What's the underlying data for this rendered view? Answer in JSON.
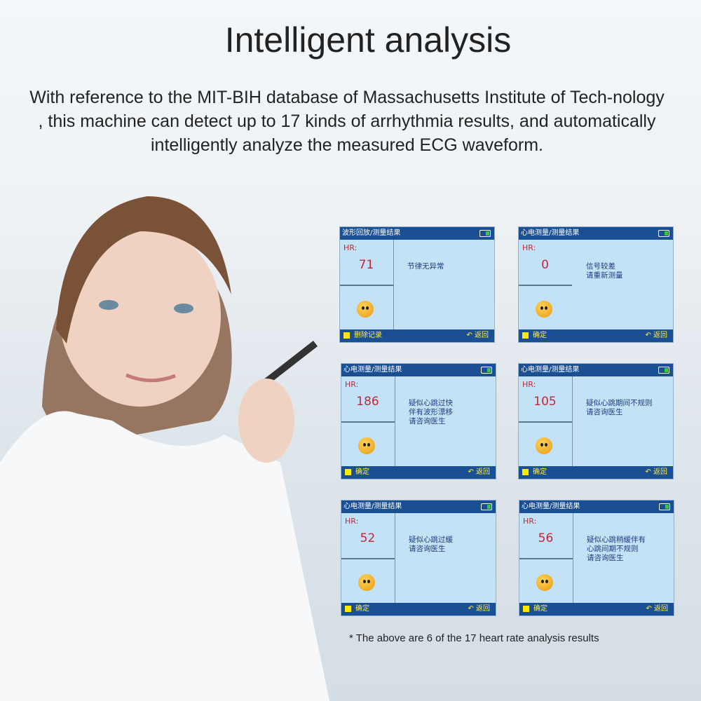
{
  "title": "Intelligent analysis",
  "description": "With reference to the MIT-BIH database of Massachusetts Institute of Tech-nology , this machine can detect up to 17 kinds of arrhythmia results, and automatically intelligently analyze the measured ECG waveform.",
  "hr_label": "HR:",
  "back_label": "返回",
  "screens": [
    {
      "header": "波形回放/测量结果",
      "hr": "71",
      "message": "节律无异常",
      "action": "删除记录",
      "mood": "happy"
    },
    {
      "header": "心电测量/测量结果",
      "hr": "0",
      "message": "信号较差\n请重新测量",
      "action": "确定",
      "mood": "neutral"
    },
    {
      "header": "心电测量/测量结果",
      "hr": "186",
      "message": "疑似心跳过快\n伴有波形漂移\n请咨询医生",
      "action": "确定",
      "mood": "sad"
    },
    {
      "header": "心电测量/测量结果",
      "hr": "105",
      "message": "疑似心跳期间不规则\n请咨询医生",
      "action": "确定",
      "mood": "sad"
    },
    {
      "header": "心电测量/测量结果",
      "hr": "52",
      "message": "疑似心跳过缓\n请咨询医生",
      "action": "确定",
      "mood": "sad"
    },
    {
      "header": "心电测量/测量结果",
      "hr": "56",
      "message": "疑似心跳稍缓伴有\n心跳间期不规则\n请咨询医生",
      "action": "确定",
      "mood": "sad"
    }
  ],
  "footnote": "* The above are 6 of the 17 heart rate analysis results",
  "colors": {
    "header_bar": "#1b4f93",
    "screen_bg": "#c4e2f6",
    "hr_value": "#c0283a",
    "message": "#1b3f80"
  }
}
